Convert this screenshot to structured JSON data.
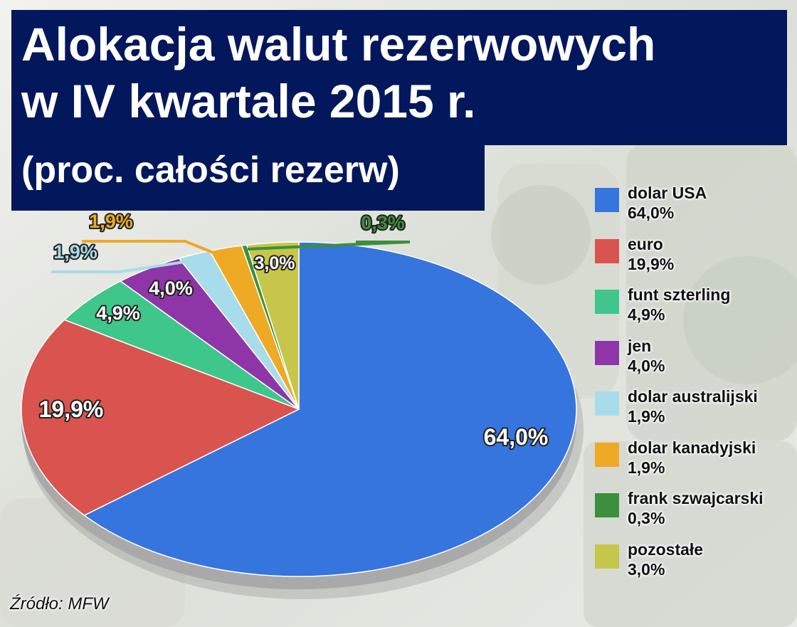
{
  "title_line1": "Alokacja walut rezerwowych",
  "title_line2": "w IV kwartale 2015 r.",
  "subtitle": "(proc. całości rezerw)",
  "source": "Źródło: MFW",
  "chart_data": {
    "type": "pie",
    "title": "Alokacja walut rezerwowych w IV kwartale 2015 r.",
    "subtitle": "(proc. całości rezerw)",
    "unit": "%",
    "legend_position": "right",
    "slices": [
      {
        "name": "dolar USA",
        "value": 64.0,
        "label": "64,0%",
        "color": "#3575dd"
      },
      {
        "name": "euro",
        "value": 19.9,
        "label": "19,9%",
        "color": "#d9534f"
      },
      {
        "name": "funt szterling",
        "value": 4.9,
        "label": "4,9%",
        "color": "#3fc68a"
      },
      {
        "name": "jen",
        "value": 4.0,
        "label": "4,0%",
        "color": "#8e35a8"
      },
      {
        "name": "dolar australijski",
        "value": 1.9,
        "label": "1,9%",
        "color": "#a8dcea"
      },
      {
        "name": "dolar kanadyjski",
        "value": 1.9,
        "label": "1,9%",
        "color": "#eeaa24"
      },
      {
        "name": "frank szwajcarski",
        "value": 0.3,
        "label": "0,3%",
        "color": "#3d8f3d"
      },
      {
        "name": "pozostałe",
        "value": 3.0,
        "label": "3,0%",
        "color": "#c6c64a"
      }
    ]
  }
}
